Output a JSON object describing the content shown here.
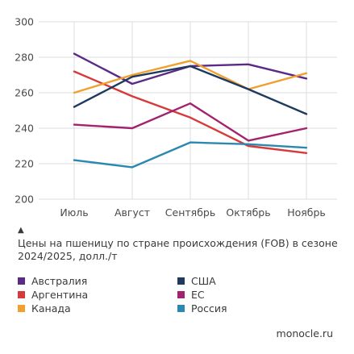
{
  "chart_data": {
    "type": "line",
    "categories": [
      "Июль",
      "Август",
      "Сентябрь",
      "Октябрь",
      "Ноябрь"
    ],
    "ylim": [
      200,
      300
    ],
    "yticks": [
      200,
      220,
      240,
      260,
      280,
      300
    ],
    "grid": true,
    "series": [
      {
        "name": "Австралия",
        "color": "#5b2a86",
        "values": [
          282,
          265,
          275,
          276,
          268
        ]
      },
      {
        "name": "Аргентина",
        "color": "#d63a3a",
        "values": [
          272,
          258,
          246,
          230,
          226
        ]
      },
      {
        "name": "Канада",
        "color": "#f0a030",
        "values": [
          260,
          270,
          278,
          262,
          271
        ]
      },
      {
        "name": "США",
        "color": "#1e3a5f",
        "values": [
          252,
          269,
          275,
          262,
          248
        ]
      },
      {
        "name": "ЕС",
        "color": "#a3226e",
        "values": [
          242,
          240,
          254,
          233,
          240
        ]
      },
      {
        "name": "Россия",
        "color": "#2b88b0",
        "values": [
          222,
          218,
          232,
          231,
          229
        ]
      }
    ]
  },
  "caption": {
    "arrow": "▲",
    "text": "Цены на пшеницу по стране происхождения (FOB) в сезоне 2024/2025, долл./т"
  },
  "legend": {
    "items": [
      {
        "label": "Австралия",
        "color": "#5b2a86"
      },
      {
        "label": "США",
        "color": "#1e3a5f"
      },
      {
        "label": "Аргентина",
        "color": "#d63a3a"
      },
      {
        "label": "ЕС",
        "color": "#a3226e"
      },
      {
        "label": "Канада",
        "color": "#f0a030"
      },
      {
        "label": "Россия",
        "color": "#2b88b0"
      }
    ]
  },
  "source": "monocle.ru"
}
